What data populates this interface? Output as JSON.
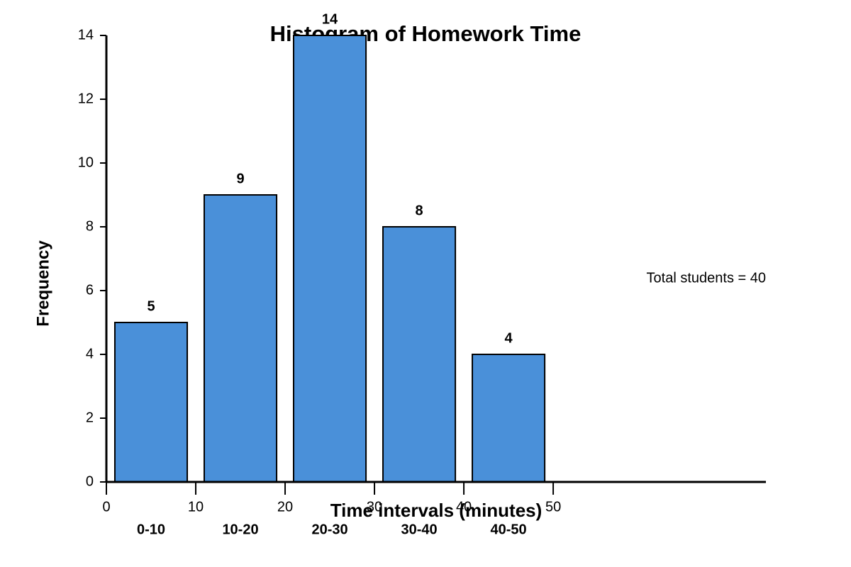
{
  "chart_data": {
    "type": "histogram",
    "title": "Histogram of Homework Time",
    "xlabel": "Time intervals (minutes)",
    "ylabel": "Frequency",
    "bins": [
      0,
      10,
      20,
      30,
      40,
      50
    ],
    "categories": [
      "0-10",
      "10-20",
      "20-30",
      "30-40",
      "40-50"
    ],
    "values": [
      5,
      9,
      14,
      8,
      4
    ],
    "color": "#4a90d9",
    "annotation": "Total students = 40",
    "xlim": [
      0,
      73.8
    ],
    "xticks": [
      0,
      10,
      20,
      30,
      40,
      50
    ],
    "ylim": [
      0,
      14
    ],
    "yticks": [
      0,
      2,
      4,
      6,
      8,
      10,
      12,
      14
    ],
    "grid": false
  }
}
